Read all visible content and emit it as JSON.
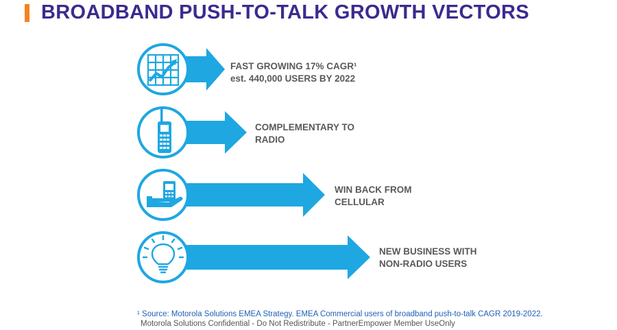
{
  "title": "BROADBAND PUSH-TO-TALK GROWTH VECTORS",
  "colors": {
    "accent": "#f58220",
    "title": "#3d2a8e",
    "arrow": "#1ea7e1",
    "text": "#595959",
    "source": "#1f5fb4"
  },
  "vectors": [
    {
      "icon": "growth-chart-icon",
      "line1": "FAST GROWING 17% CAGR¹",
      "line2": "est. 440,000 USERS BY 2022"
    },
    {
      "icon": "two-way-radio-icon",
      "line1": "COMPLEMENTARY TO",
      "line2": "RADIO"
    },
    {
      "icon": "hand-holding-phone-icon",
      "line1": "WIN BACK FROM",
      "line2": "CELLULAR"
    },
    {
      "icon": "light-bulb-icon",
      "line1": "NEW BUSINESS WITH",
      "line2": "NON-RADIO USERS"
    }
  ],
  "footnote": {
    "source": "¹ Source: Motorola Solutions EMEA Strategy. EMEA Commercial users of broadband push-to-talk CAGR 2019-2022.",
    "confidential": "Motorola Solutions Confidential - Do Not Redistribute - PartnerEmpower Member UseOnly"
  }
}
